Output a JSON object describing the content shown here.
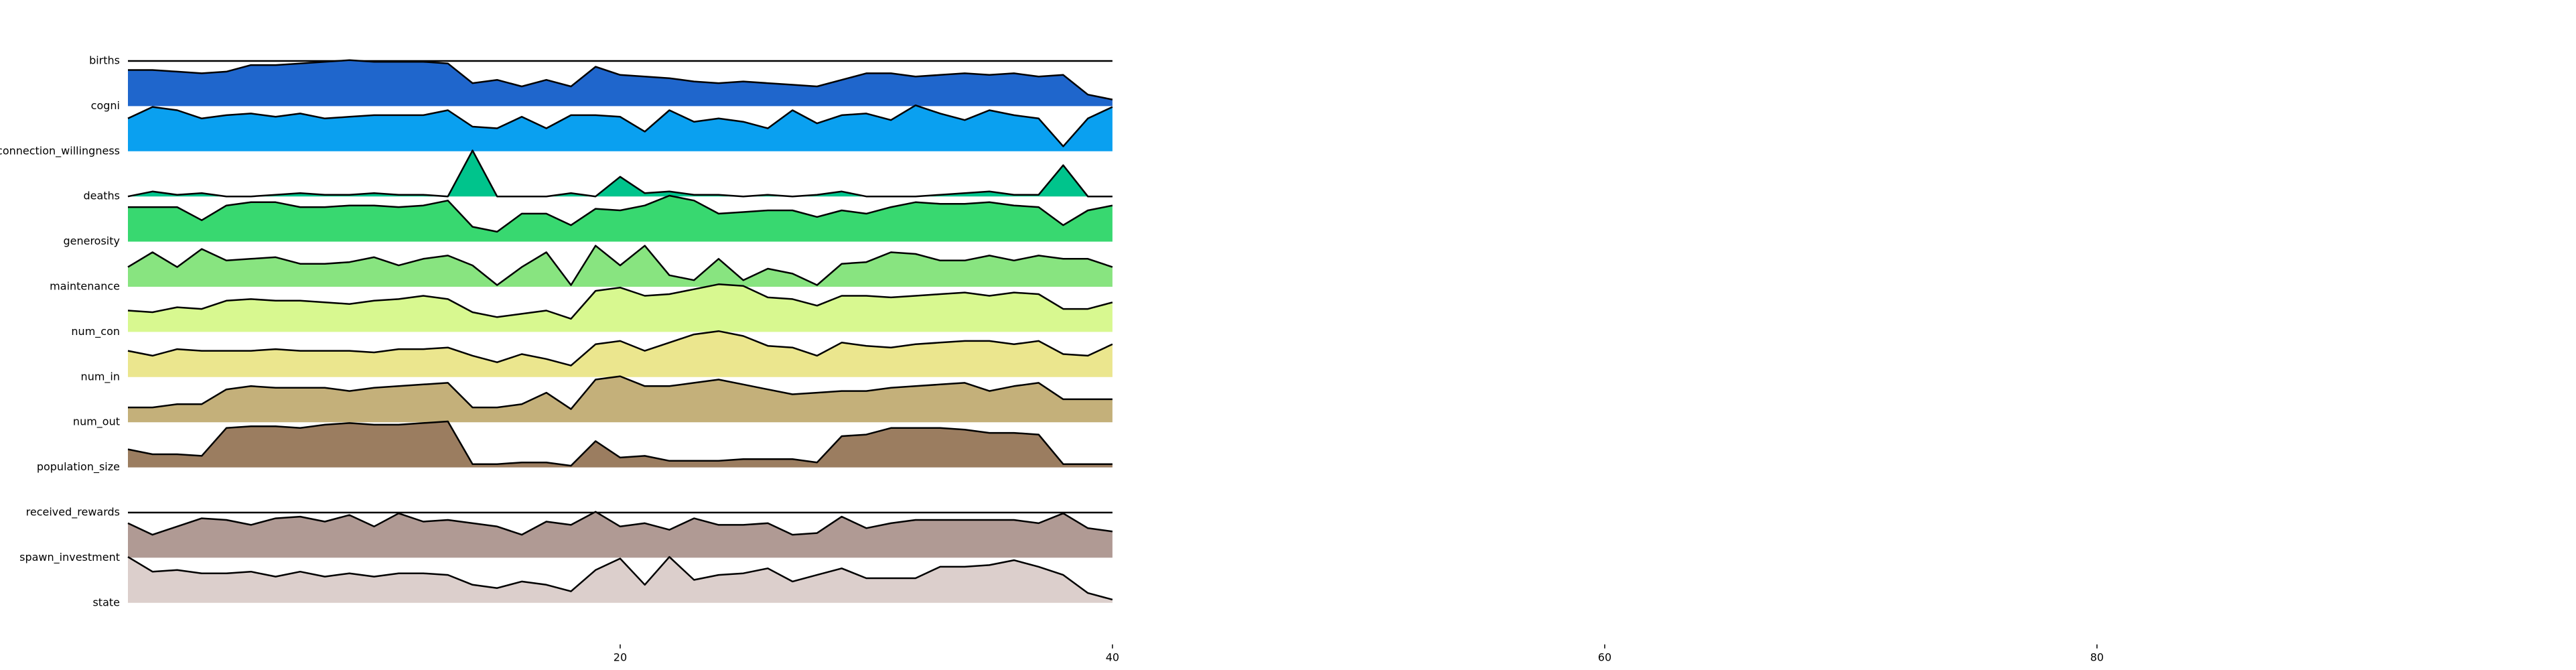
{
  "chart_data": {
    "type": "ridgeline",
    "x": [
      0,
      1,
      2,
      3,
      4,
      5,
      6,
      7,
      8,
      9,
      10,
      11,
      12,
      13,
      14,
      15,
      16,
      17,
      18,
      19,
      20,
      21,
      22,
      23,
      24,
      25,
      26,
      27,
      28,
      29,
      30,
      31,
      32,
      33,
      34,
      35,
      36,
      37,
      38,
      39,
      40
    ],
    "xlim": [
      0,
      99
    ],
    "xticks": [
      20,
      40,
      60,
      80
    ],
    "series": [
      {
        "name": "births",
        "color": "#2a3a9c",
        "values": [
          0,
          0,
          0,
          0,
          0,
          0,
          0,
          0,
          0,
          0,
          0,
          0,
          0,
          0,
          0,
          0,
          0,
          0,
          0,
          0,
          0,
          0,
          0,
          0,
          0,
          0,
          0,
          0,
          0,
          0,
          0,
          0,
          0,
          0,
          0,
          0,
          0,
          0,
          0,
          0,
          0
        ]
      },
      {
        "name": "cogni",
        "color": "#1f66cc",
        "values": [
          22,
          22,
          21,
          20,
          21,
          25,
          25,
          26,
          27,
          28,
          27,
          27,
          27,
          26,
          14,
          16,
          12,
          16,
          12,
          24,
          19,
          18,
          17,
          15,
          14,
          15,
          14,
          13,
          12,
          16,
          20,
          20,
          18,
          19,
          20,
          19,
          20,
          18,
          19,
          7,
          4
        ]
      },
      {
        "name": "connection_willingness",
        "color": "#0aa0f0",
        "values": [
          20,
          27,
          25,
          20,
          22,
          23,
          21,
          23,
          20,
          21,
          22,
          22,
          22,
          25,
          15,
          14,
          21,
          14,
          22,
          22,
          21,
          12,
          25,
          18,
          20,
          18,
          14,
          25,
          17,
          22,
          23,
          19,
          28,
          23,
          19,
          25,
          22,
          20,
          3,
          20,
          27
        ]
      },
      {
        "name": "deaths",
        "color": "#00c48c",
        "values": [
          0,
          3,
          1,
          2,
          0,
          0,
          1,
          2,
          1,
          1,
          2,
          1,
          1,
          0,
          28,
          0,
          0,
          0,
          2,
          0,
          12,
          2,
          3,
          1,
          1,
          0,
          1,
          0,
          1,
          3,
          0,
          0,
          0,
          1,
          2,
          3,
          1,
          1,
          19,
          0,
          0
        ]
      },
      {
        "name": "generosity",
        "color": "#38d870",
        "values": [
          21,
          21,
          21,
          13,
          22,
          24,
          24,
          21,
          21,
          22,
          22,
          21,
          22,
          25,
          9,
          6,
          17,
          17,
          10,
          20,
          19,
          22,
          28,
          25,
          17,
          18,
          19,
          19,
          15,
          19,
          17,
          21,
          24,
          23,
          23,
          24,
          22,
          21,
          10,
          19,
          22
        ]
      },
      {
        "name": "maintenance",
        "color": "#88e480",
        "values": [
          12,
          21,
          12,
          23,
          16,
          17,
          18,
          14,
          14,
          15,
          18,
          13,
          17,
          19,
          13,
          1,
          12,
          21,
          1,
          25,
          13,
          25,
          7,
          4,
          17,
          4,
          11,
          8,
          1,
          14,
          15,
          21,
          20,
          16,
          16,
          19,
          16,
          19,
          17,
          17,
          12
        ]
      },
      {
        "name": "num_con",
        "color": "#d8f890",
        "values": [
          13,
          12,
          15,
          14,
          19,
          20,
          19,
          19,
          18,
          17,
          19,
          20,
          22,
          20,
          12,
          9,
          11,
          13,
          8,
          25,
          27,
          22,
          23,
          26,
          29,
          28,
          21,
          20,
          16,
          22,
          22,
          21,
          22,
          23,
          24,
          22,
          24,
          23,
          14,
          14,
          18
        ]
      },
      {
        "name": "num_in",
        "color": "#ebe68e",
        "values": [
          16,
          13,
          17,
          16,
          16,
          16,
          17,
          16,
          16,
          16,
          15,
          17,
          17,
          18,
          13,
          9,
          14,
          11,
          7,
          20,
          22,
          16,
          21,
          26,
          28,
          25,
          19,
          18,
          13,
          21,
          19,
          18,
          20,
          21,
          22,
          22,
          20,
          22,
          14,
          13,
          20
        ]
      },
      {
        "name": "num_out",
        "color": "#c4b07a",
        "values": [
          9,
          9,
          11,
          11,
          20,
          22,
          21,
          21,
          21,
          19,
          21,
          22,
          23,
          24,
          9,
          9,
          11,
          18,
          8,
          26,
          28,
          22,
          22,
          24,
          26,
          23,
          20,
          17,
          18,
          19,
          19,
          21,
          22,
          23,
          24,
          19,
          22,
          24,
          14,
          14,
          14
        ]
      },
      {
        "name": "population_size",
        "color": "#9b7d60",
        "values": [
          11,
          8,
          8,
          7,
          24,
          25,
          25,
          24,
          26,
          27,
          26,
          26,
          27,
          28,
          2,
          2,
          3,
          3,
          1,
          16,
          6,
          7,
          4,
          4,
          4,
          5,
          5,
          5,
          3,
          19,
          20,
          24,
          24,
          24,
          23,
          21,
          21,
          20,
          2,
          2,
          2
        ]
      },
      {
        "name": "received_rewards",
        "color": "#a08878",
        "values": [
          0,
          0,
          0,
          0,
          0,
          0,
          0,
          0,
          0,
          0,
          0,
          0,
          0,
          0,
          0,
          0,
          0,
          0,
          0,
          0,
          0,
          0,
          0,
          0,
          0,
          0,
          0,
          0,
          0,
          0,
          0,
          0,
          0,
          0,
          0,
          0,
          0,
          0,
          0,
          0,
          0
        ]
      },
      {
        "name": "spawn_investment",
        "color": "#b09a94",
        "values": [
          21,
          14,
          19,
          24,
          23,
          20,
          24,
          25,
          22,
          26,
          19,
          27,
          22,
          23,
          21,
          19,
          14,
          22,
          20,
          28,
          19,
          21,
          17,
          24,
          20,
          20,
          21,
          14,
          15,
          25,
          18,
          21,
          23,
          23,
          23,
          23,
          23,
          21,
          27,
          18,
          16
        ]
      },
      {
        "name": "state",
        "color": "#dccfcc",
        "values": [
          28,
          19,
          20,
          18,
          18,
          19,
          16,
          19,
          16,
          18,
          16,
          18,
          18,
          17,
          11,
          9,
          13,
          11,
          7,
          20,
          27,
          11,
          28,
          14,
          17,
          18,
          21,
          13,
          17,
          21,
          15,
          15,
          15,
          22,
          22,
          23,
          26,
          22,
          17,
          6,
          2
        ]
      }
    ]
  }
}
